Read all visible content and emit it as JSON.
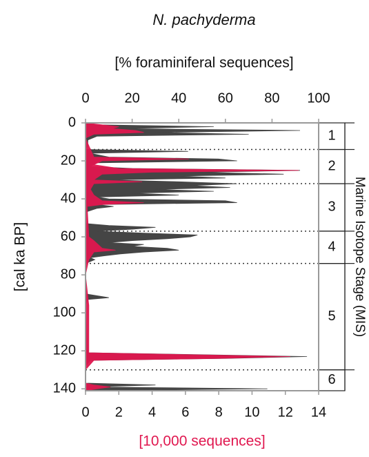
{
  "chart_data": {
    "type": "depth-profile",
    "title": "N. pachyderma",
    "x_label": "[% foraminiferal sequences]",
    "x2_label": "[10,000 sequences]",
    "y_label": "[cal ka BP]",
    "xlim": [
      0,
      100
    ],
    "xticks": [
      0,
      20,
      40,
      60,
      80,
      100
    ],
    "x2lim": [
      0,
      14
    ],
    "x2ticks": [
      0,
      2,
      4,
      6,
      8,
      10,
      12,
      14
    ],
    "ylim": [
      0,
      141
    ],
    "yticks": [
      0,
      20,
      40,
      60,
      80,
      100,
      120,
      140
    ],
    "x2_color": "#e0174f",
    "series": [
      {
        "color": "#454545",
        "axis": "x",
        "ages": [
          0,
          1,
          2,
          3,
          4,
          5,
          6,
          7,
          9,
          12,
          14,
          15,
          16,
          18,
          19,
          20,
          21,
          23,
          24,
          25,
          26,
          27,
          28,
          29,
          30,
          31,
          32,
          33,
          34,
          35,
          36,
          37,
          38,
          39,
          40,
          41,
          42,
          43,
          44,
          45,
          47,
          53,
          54,
          55,
          56,
          57,
          58,
          59,
          60,
          61,
          62,
          63,
          64,
          65,
          66,
          67,
          68,
          69,
          70,
          71,
          72,
          73,
          74,
          90,
          92,
          93,
          96,
          121,
          123,
          124,
          125,
          128,
          137,
          138,
          139,
          140,
          141
        ],
        "values": [
          0,
          5,
          55,
          15,
          92,
          30,
          70,
          5,
          1,
          1,
          0,
          44,
          2,
          10,
          57,
          65,
          5,
          2,
          20,
          92,
          50,
          85,
          40,
          60,
          10,
          40,
          65,
          45,
          62,
          30,
          55,
          20,
          40,
          5,
          10,
          60,
          65,
          5,
          12,
          5,
          0,
          0,
          10,
          30,
          20,
          5,
          25,
          48,
          45,
          35,
          20,
          10,
          25,
          20,
          35,
          40,
          25,
          15,
          8,
          2,
          4,
          2,
          0,
          0,
          10,
          1,
          0,
          1,
          95,
          60,
          2,
          0,
          0,
          30,
          2,
          78,
          0
        ]
      },
      {
        "color": "#e0174f",
        "axis": "x2",
        "ages": [
          0,
          2,
          3,
          4,
          5,
          6,
          8,
          18,
          19,
          20,
          22,
          24,
          25,
          26,
          27,
          30,
          31,
          32,
          35,
          38,
          41,
          42,
          43,
          44,
          60,
          62,
          66,
          67,
          68,
          72,
          80,
          96,
          121,
          123,
          124,
          125,
          130,
          137,
          138,
          139,
          140,
          141
        ],
        "values": [
          0,
          2,
          1.6,
          3,
          3.5,
          0.5,
          0,
          0.5,
          6.2,
          1,
          0.5,
          2,
          12.8,
          4,
          1,
          0.5,
          3.4,
          0.5,
          0.3,
          0.5,
          1,
          3.5,
          1,
          0.1,
          0.2,
          0.5,
          1,
          1.8,
          0.5,
          0.2,
          0,
          0.2,
          0.2,
          12.3,
          8,
          0.5,
          0,
          0,
          0.5,
          1.5,
          0.7,
          0
        ]
      }
    ],
    "mis": {
      "label": "Marine Isotope Stage (MIS)",
      "stages": [
        {
          "label": "1",
          "start": 0,
          "end": 14
        },
        {
          "label": "2",
          "start": 14,
          "end": 32
        },
        {
          "label": "3",
          "start": 32,
          "end": 57
        },
        {
          "label": "4",
          "start": 57,
          "end": 74
        },
        {
          "label": "5",
          "start": 74,
          "end": 130
        },
        {
          "label": "6",
          "start": 130,
          "end": 141
        }
      ]
    }
  }
}
